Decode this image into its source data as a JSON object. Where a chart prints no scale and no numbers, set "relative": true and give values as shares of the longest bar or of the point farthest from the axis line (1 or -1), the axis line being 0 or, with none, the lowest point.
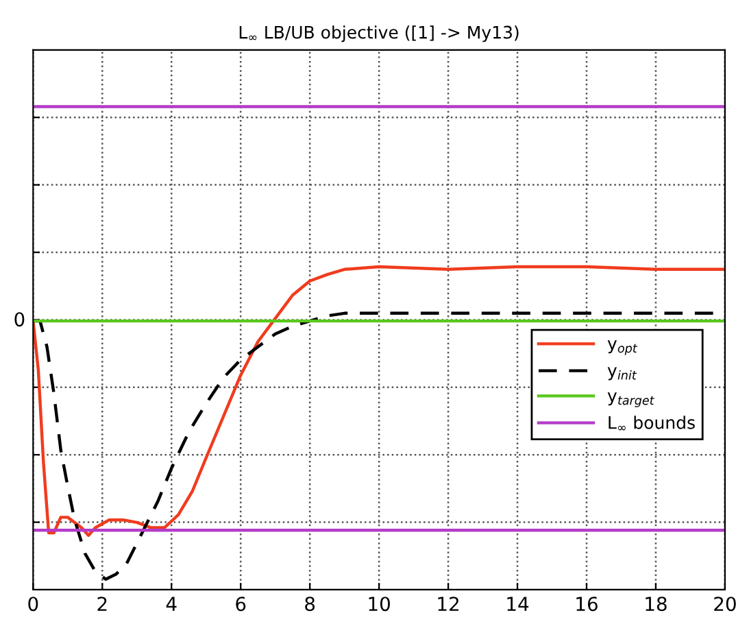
{
  "chart_data": {
    "type": "line",
    "title": "L$_{∞}$ LB/UB objective ([1] -> My13)",
    "relative": true,
    "xlim": [
      0,
      20
    ],
    "xticks": [
      0,
      2,
      4,
      6,
      8,
      10,
      12,
      14,
      16,
      18,
      20
    ],
    "annotations": [
      "0"
    ],
    "grid": true,
    "legend": "right",
    "series": [
      {
        "name": "y$_{opt}$",
        "color": "#f03c1e",
        "line_style": "solid",
        "x": [
          0,
          0.15,
          0.3,
          0.45,
          0.6,
          0.8,
          1.0,
          1.2,
          1.4,
          1.6,
          1.8,
          2.2,
          2.6,
          3.0,
          3.4,
          3.8,
          4.2,
          4.6,
          5.0,
          5.5,
          6.0,
          6.5,
          7.0,
          7.5,
          8,
          8.5,
          9,
          10,
          12,
          14,
          16,
          18,
          20
        ],
        "values": [
          0,
          -0.19,
          -0.55,
          -0.82,
          -0.82,
          -0.76,
          -0.76,
          -0.78,
          -0.8,
          -0.83,
          -0.8,
          -0.77,
          -0.77,
          -0.78,
          -0.8,
          -0.8,
          -0.75,
          -0.66,
          -0.53,
          -0.37,
          -0.21,
          -0.08,
          0.01,
          0.1,
          0.155,
          0.18,
          0.2,
          0.21,
          0.2,
          0.21,
          0.21,
          0.2,
          0.2
        ]
      },
      {
        "name": "y$_{init}$",
        "color": "#000000",
        "line_style": "dashed",
        "x": [
          0,
          0.2,
          0.4,
          0.6,
          0.8,
          1.0,
          1.2,
          1.5,
          1.8,
          2.1,
          2.4,
          2.7,
          3.0,
          3.3,
          3.6,
          4.0,
          4.5,
          5.0,
          5.5,
          6.0,
          6.5,
          7.0,
          7.5,
          8,
          8.5,
          9,
          10,
          20
        ],
        "values": [
          0,
          0,
          -0.1,
          -0.28,
          -0.5,
          -0.64,
          -0.77,
          -0.9,
          -0.97,
          -1,
          -0.98,
          -0.94,
          -0.86,
          -0.78,
          -0.7,
          -0.57,
          -0.43,
          -0.32,
          -0.22,
          -0.15,
          -0.1,
          -0.05,
          -0.02,
          0.0,
          0.02,
          0.03,
          0.03,
          0.03
        ]
      },
      {
        "name": "y$_{target}$",
        "color": "#5ac81e",
        "line_style": "solid",
        "x": [
          0,
          20
        ],
        "values": [
          0,
          0
        ]
      },
      {
        "name": "L$_{∞}$ bounds",
        "color": "#b43cc8",
        "line_style": "solid",
        "x": [
          0,
          20
        ],
        "values": [
          0.83,
          0.83
        ]
      },
      {
        "color": "#b43cc8",
        "line_style": "solid",
        "x": [
          0,
          20
        ],
        "values": [
          -0.81,
          -0.81
        ]
      }
    ]
  }
}
